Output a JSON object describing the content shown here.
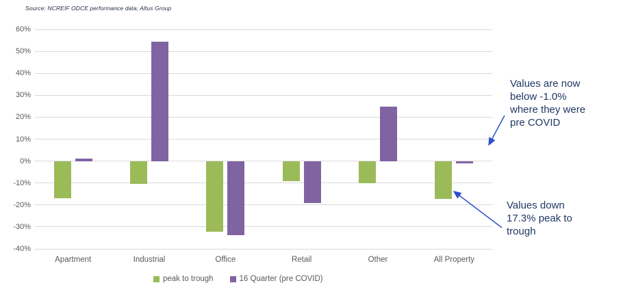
{
  "source_note": "Source: NCREIF ODCE performance data; Altus Group",
  "colors": {
    "peak_to_trough": "#9BBB59",
    "sixteen_quarter": "#8064A2",
    "gridline": "#D9D9D9",
    "axis_text": "#595959",
    "annotation_text": "#1F3864",
    "arrow": "#2E51C9",
    "source_text": "#1F2A44"
  },
  "chart_data": {
    "type": "bar",
    "title": "",
    "categories": [
      "Apartment",
      "Industrial",
      "Office",
      "Retail",
      "Other",
      "All Property"
    ],
    "series": [
      {
        "name": "peak to trough",
        "color_key": "peak_to_trough",
        "values": [
          -17.0,
          -10.5,
          -32.3,
          -9.2,
          -10.0,
          -17.3
        ]
      },
      {
        "name": "16 Quarter (pre COVID)",
        "color_key": "sixteen_quarter",
        "values": [
          1.2,
          54.3,
          -33.9,
          -19.0,
          24.9,
          -1.0
        ]
      }
    ],
    "xlabel": "",
    "ylabel": "",
    "ylim": [
      -40,
      60
    ],
    "y_ticks": [
      60,
      50,
      40,
      30,
      20,
      10,
      0,
      -10,
      -20,
      -30,
      -40
    ],
    "y_tick_suffix": "%",
    "grid": true,
    "legend_position": "bottom-center"
  },
  "annotations": [
    {
      "id": "pre-covid-note",
      "text": "Values are now\nbelow -1.0%\nwhere they were\npre COVID"
    },
    {
      "id": "peak-trough-note",
      "text": "Values down\n17.3% peak to\ntrough"
    }
  ]
}
